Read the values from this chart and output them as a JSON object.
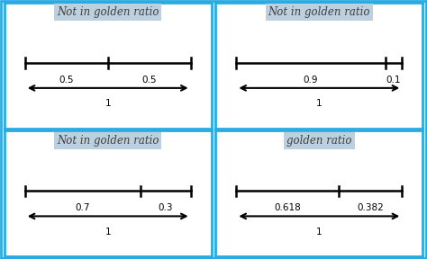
{
  "panels": [
    {
      "title": "Not in golden ratio",
      "left_val": "0.5",
      "right_val": "0.5",
      "split": 0.5,
      "is_golden": false
    },
    {
      "title": "Not in golden ratio",
      "left_val": "0.9",
      "right_val": "0.1",
      "split": 0.9,
      "is_golden": false
    },
    {
      "title": "Not in golden ratio",
      "left_val": "0.7",
      "right_val": "0.3",
      "split": 0.7,
      "is_golden": false
    },
    {
      "title": "golden ratio",
      "left_val": "0.618",
      "right_val": "0.382",
      "split": 0.618,
      "is_golden": true
    }
  ],
  "outer_bg": "#ffffff",
  "panel_bg": "#ffffff",
  "border_color": "#29abe2",
  "title_bg": "#bdd0e0",
  "title_color": "#404040",
  "line_color": "#000000",
  "font_size_title": 8.5,
  "font_size_label": 7.5,
  "font_size_total": 7.5
}
